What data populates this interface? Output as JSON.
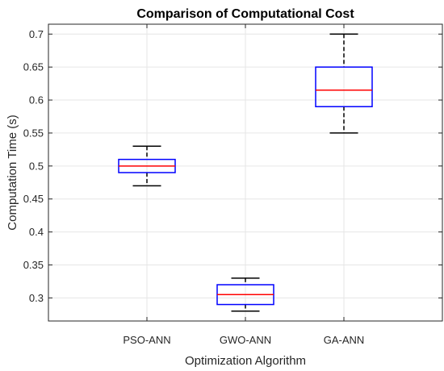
{
  "chart_data": {
    "type": "box",
    "title": "Comparison of Computational Cost",
    "xlabel": "Optimization Algorithm",
    "ylabel": "Computation Time (s)",
    "categories": [
      "PSO-ANN",
      "GWO-ANN",
      "GA-ANN"
    ],
    "boxes": [
      {
        "category": "PSO-ANN",
        "whisker_low": 0.47,
        "q1": 0.49,
        "median": 0.5,
        "q3": 0.51,
        "whisker_high": 0.53
      },
      {
        "category": "GWO-ANN",
        "whisker_low": 0.28,
        "q1": 0.29,
        "median": 0.305,
        "q3": 0.32,
        "whisker_high": 0.33
      },
      {
        "category": "GA-ANN",
        "whisker_low": 0.55,
        "q1": 0.59,
        "median": 0.615,
        "q3": 0.65,
        "whisker_high": 0.7
      }
    ],
    "ylim": [
      0.265,
      0.715
    ],
    "yticks": [
      "0.3",
      "0.35",
      "0.4",
      "0.45",
      "0.5",
      "0.55",
      "0.6",
      "0.65",
      "0.7"
    ],
    "grid": true,
    "colors": {
      "box": "#0000ff",
      "median": "#ff0000",
      "whisker": "#000000",
      "grid": "#e6e6e6",
      "axis": "#262626"
    }
  }
}
